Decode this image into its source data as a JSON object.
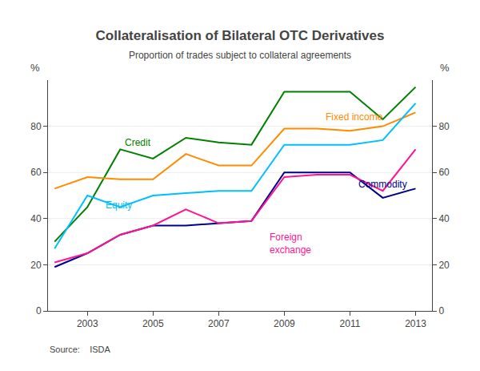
{
  "chart_data": {
    "type": "line",
    "title": "Collateralisation of Bilateral OTC Derivatives",
    "subtitle": "Proportion of trades subject to collateral agreements",
    "source": "Source:    ISDA",
    "x": [
      2002,
      2003,
      2004,
      2005,
      2006,
      2007,
      2008,
      2009,
      2010,
      2011,
      2012,
      2013
    ],
    "series": [
      {
        "name": "Credit",
        "color": "#008000",
        "values": [
          30,
          45,
          70,
          66,
          75,
          73,
          72,
          95,
          95,
          95,
          83,
          97
        ]
      },
      {
        "name": "Fixed income",
        "color": "#FF8C00",
        "values": [
          53,
          58,
          57,
          57,
          68,
          63,
          63,
          79,
          79,
          78,
          80,
          86
        ]
      },
      {
        "name": "Equity",
        "color": "#00BFFF",
        "values": [
          27,
          50,
          45,
          50,
          51,
          52,
          52,
          72,
          72,
          72,
          74,
          90
        ]
      },
      {
        "name": "Commodity",
        "color": "#00008B",
        "values": [
          19,
          25,
          33,
          37,
          37,
          38,
          39,
          60,
          60,
          60,
          49,
          53
        ]
      },
      {
        "name": "Foreign\nexchange",
        "color": "#FF1493",
        "values": [
          21,
          25,
          33,
          37,
          44,
          38,
          39,
          58,
          59,
          59,
          52,
          70
        ]
      }
    ],
    "annotations": [
      {
        "text": "Credit",
        "x": 2004.1,
        "y": 73,
        "color": "#008000"
      },
      {
        "text": "Fixed income",
        "x": 2010.2,
        "y": 84,
        "color": "#FF8C00"
      },
      {
        "text": "Equity",
        "x": 2003.5,
        "y": 46,
        "color": "#00BFFF"
      },
      {
        "text": "Commodity",
        "x": 2011.2,
        "y": 55,
        "color": "#00008B"
      },
      {
        "text": "Foreign\nexchange",
        "x": 2008.5,
        "y": 29,
        "color": "#FF1493"
      }
    ],
    "xlim": [
      2001.8,
      2013.5
    ],
    "xticks": [
      2003,
      2005,
      2007,
      2009,
      2011,
      2013
    ],
    "ylim": [
      0,
      100
    ],
    "yticks": [
      0,
      20,
      40,
      60,
      80
    ],
    "y2lim": [
      0,
      100
    ],
    "y2ticks": [
      0,
      20,
      40,
      60,
      80
    ],
    "ylabel": "%",
    "y2label": "%",
    "grid": true
  }
}
